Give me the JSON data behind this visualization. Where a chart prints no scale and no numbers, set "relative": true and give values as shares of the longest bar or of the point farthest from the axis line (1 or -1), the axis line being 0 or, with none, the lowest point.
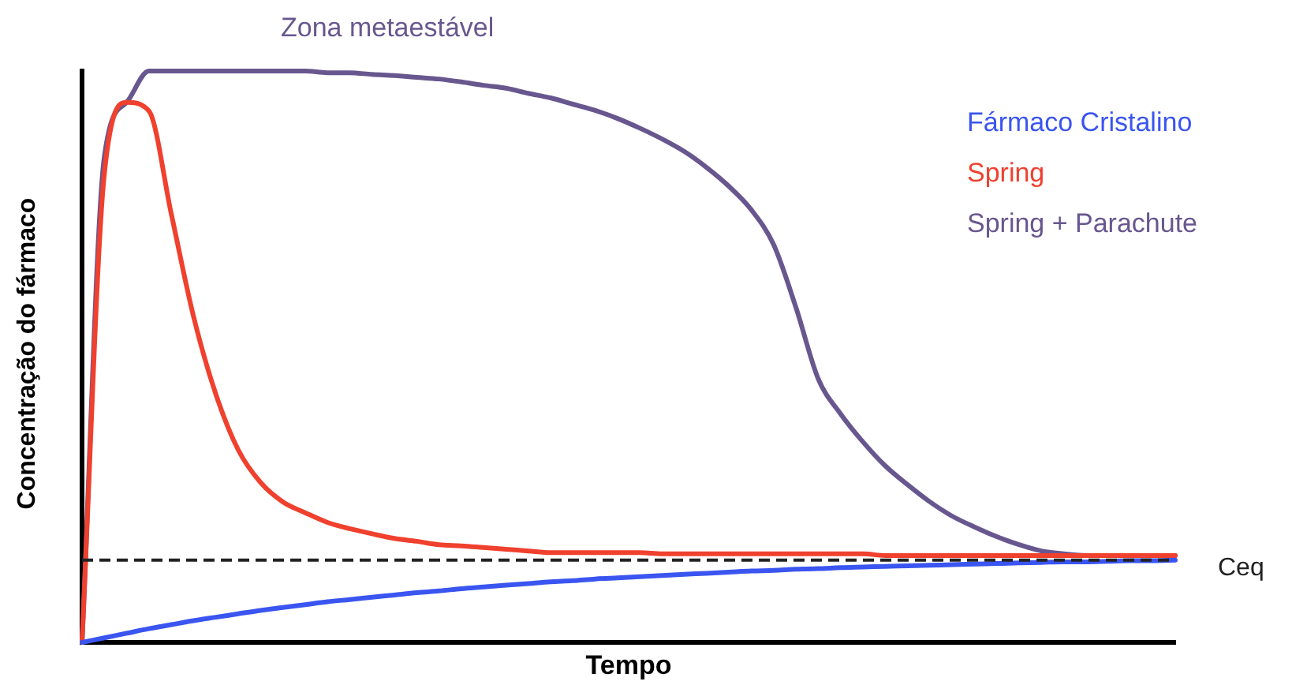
{
  "chart_data": {
    "type": "line",
    "relative": true,
    "xlabel": "Tempo",
    "ylabel": "Concentração do fármaco",
    "annotations": [
      "Zona metaestável"
    ],
    "legend": "top right",
    "marker": "none",
    "line_style": "solid",
    "categories": [
      null,
      null,
      null,
      null,
      null,
      null,
      null,
      null,
      null,
      null,
      null,
      null,
      null,
      null,
      null,
      null,
      null,
      null,
      null,
      null,
      null,
      null,
      null,
      null,
      null,
      null,
      null,
      null,
      null,
      null,
      null,
      null,
      null,
      null,
      null,
      null,
      null,
      null,
      null,
      null,
      null,
      null,
      null,
      null,
      null,
      null,
      null,
      null,
      null,
      null
    ],
    "series": [
      {
        "name": "Fármaco Cristalino",
        "color": "#3a55f0",
        "values": [
          0,
          0.008,
          0.016,
          0.024,
          0.031,
          0.038,
          0.044,
          0.05,
          0.056,
          0.061,
          0.066,
          0.071,
          0.075,
          0.079,
          0.083,
          0.087,
          0.09,
          0.094,
          0.097,
          0.1,
          0.103,
          0.106,
          0.108,
          0.111,
          0.113,
          0.115,
          0.117,
          0.119,
          0.121,
          0.123,
          0.125,
          0.126,
          0.128,
          0.129,
          0.131,
          0.132,
          0.133,
          0.134,
          0.135,
          0.136,
          0.137,
          0.138,
          0.139,
          0.14,
          0.141,
          0.141,
          0.142,
          0.143,
          0.143,
          0.144
        ]
      },
      {
        "name": "Spring",
        "color": "#f0402e",
        "values": [
          0,
          0.82,
          0.945,
          0.93,
          0.75,
          0.57,
          0.434,
          0.337,
          0.28,
          0.246,
          0.227,
          0.21,
          0.199,
          0.19,
          0.182,
          0.177,
          0.171,
          0.169,
          0.166,
          0.163,
          0.16,
          0.157,
          0.157,
          0.157,
          0.157,
          0.157,
          0.155,
          0.155,
          0.155,
          0.155,
          0.155,
          0.155,
          0.155,
          0.155,
          0.155,
          0.155,
          0.152,
          0.152,
          0.152,
          0.152,
          0.152,
          0.152,
          0.152,
          0.152,
          0.152,
          0.152,
          0.152,
          0.152,
          0.152,
          0.152
        ]
      },
      {
        "name": "Spring + Parachute",
        "color": "#68578f",
        "values": [
          0,
          0.85,
          0.945,
          1,
          1,
          1,
          1,
          1,
          1,
          1,
          1,
          0.997,
          0.997,
          0.994,
          0.992,
          0.989,
          0.986,
          0.981,
          0.975,
          0.97,
          0.961,
          0.953,
          0.942,
          0.931,
          0.917,
          0.9,
          0.881,
          0.859,
          0.831,
          0.798,
          0.757,
          0.696,
          0.586,
          0.461,
          0.4,
          0.351,
          0.309,
          0.276,
          0.246,
          0.221,
          0.202,
          0.185,
          0.171,
          0.16,
          0.155,
          0.152,
          0.152,
          0.152,
          0.152,
          0.152
        ]
      }
    ],
    "ref_lines": [
      {
        "axis": "y",
        "value": 0.144,
        "label": "Ceq",
        "color": "#222222",
        "line_style": "dashed"
      }
    ]
  }
}
